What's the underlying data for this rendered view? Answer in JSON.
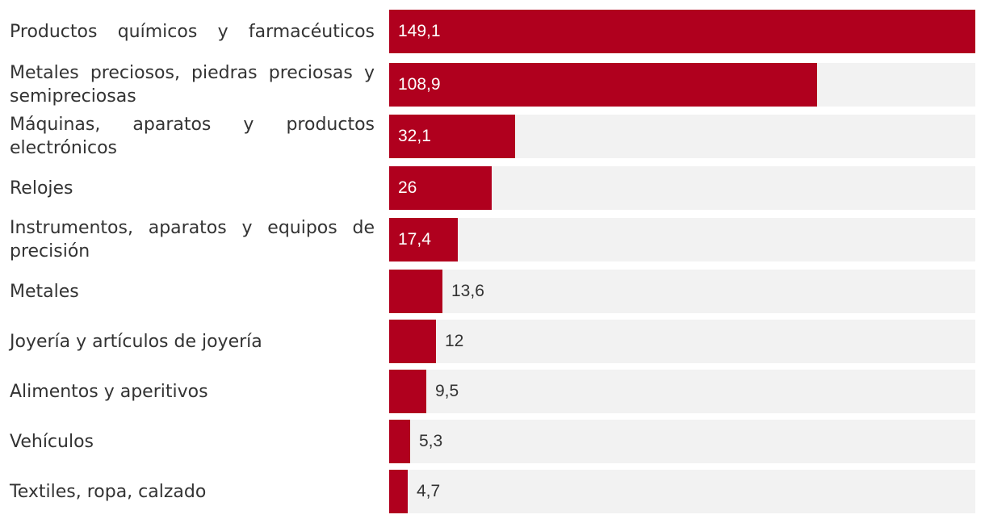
{
  "chart_data": {
    "type": "bar",
    "orientation": "horizontal",
    "categories": [
      "Productos químicos y farmacéuticos",
      "Metales preciosos, piedras preciosas y semipreciosas",
      "Máquinas, aparatos y productos electrónicos",
      "Relojes",
      "Instrumentos, aparatos y equipos de precisión",
      "Metales",
      "Joyería y artículos de joyería",
      "Alimentos y aperitivos",
      "Vehículos",
      "Textiles, ropa, calzado"
    ],
    "values": [
      149.1,
      108.9,
      32.1,
      26,
      17.4,
      13.6,
      12,
      9.5,
      5.3,
      4.7
    ],
    "value_labels": [
      "149,1",
      "108,9",
      "32,1",
      "26",
      "17,4",
      "13,6",
      "12",
      "9,5",
      "5,3",
      "4,7"
    ],
    "xlim": [
      0,
      149.1
    ],
    "title": "",
    "xlabel": "",
    "ylabel": "",
    "grid": false,
    "legend": "none"
  },
  "colors": {
    "bar": "#b0001e",
    "track": "#f2f2f2",
    "label_inside": "#ffffff",
    "label_outside": "#333333"
  }
}
